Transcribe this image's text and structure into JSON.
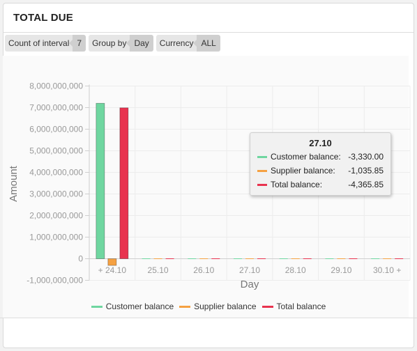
{
  "panel": {
    "title": "TOTAL DUE"
  },
  "toolbar": {
    "chips": [
      {
        "label": "Count of interval",
        "value": "7"
      },
      {
        "label": "Group by",
        "value": "Day"
      },
      {
        "label": "Currency",
        "value": "ALL"
      }
    ]
  },
  "tooltip": {
    "title": "27.10",
    "rows": [
      {
        "name": "Customer balance:",
        "value": "-3,330.00",
        "color": "#6fd6a0"
      },
      {
        "name": "Supplier balance:",
        "value": "-1,035.85",
        "color": "#f5a142"
      },
      {
        "name": "Total balance:",
        "value": "-4,365.85",
        "color": "#e8334f"
      }
    ]
  },
  "chart_data": {
    "type": "bar",
    "categories": [
      "+ 24.10",
      "25.10",
      "26.10",
      "27.10",
      "28.10",
      "29.10",
      "30.10 +"
    ],
    "series": [
      {
        "name": "Customer balance",
        "color": "#6fd6a0",
        "values": [
          7200000000,
          0,
          0,
          -3330,
          0,
          0,
          0
        ]
      },
      {
        "name": "Supplier balance",
        "color": "#f5a142",
        "values": [
          -310000000,
          0,
          0,
          -1035.85,
          0,
          0,
          0
        ]
      },
      {
        "name": "Total balance",
        "color": "#e8334f",
        "values": [
          6990000000,
          0,
          0,
          -4365.85,
          0,
          0,
          0
        ]
      }
    ],
    "xlabel": "Day",
    "ylabel": "Amount",
    "ylim": [
      -1000000000,
      8000000000
    ],
    "yticks": [
      "-1,000,000,000",
      "0",
      "1,000,000,000",
      "2,000,000,000",
      "3,000,000,000",
      "4,000,000,000",
      "5,000,000,000",
      "6,000,000,000",
      "7,000,000,000",
      "8,000,000,000"
    ],
    "ytick_values": [
      -1000000000,
      0,
      1000000000,
      2000000000,
      3000000000,
      4000000000,
      5000000000,
      6000000000,
      7000000000,
      8000000000
    ],
    "grid": true,
    "legend_position": "bottom"
  }
}
